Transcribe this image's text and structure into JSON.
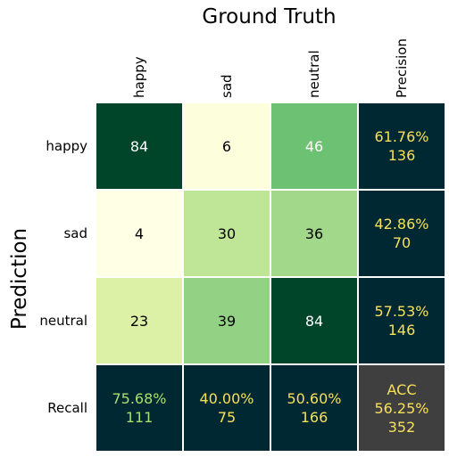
{
  "chart_data": {
    "type": "heatmap",
    "title": "Ground Truth",
    "ylabel": "Prediction",
    "columns": [
      "happy",
      "sad",
      "neutral"
    ],
    "rows": [
      "happy",
      "sad",
      "neutral"
    ],
    "matrix": [
      [
        84,
        6,
        46
      ],
      [
        4,
        30,
        36
      ],
      [
        23,
        39,
        84
      ]
    ],
    "precision_label": "Precision",
    "precision": [
      {
        "pct": "61.76%",
        "total": "136"
      },
      {
        "pct": "42.86%",
        "total": "70"
      },
      {
        "pct": "57.53%",
        "total": "146"
      }
    ],
    "recall_label": "Recall",
    "recall": [
      {
        "pct": "75.68%",
        "total": "111"
      },
      {
        "pct": "40.00%",
        "total": "75"
      },
      {
        "pct": "50.60%",
        "total": "166"
      }
    ],
    "accuracy": {
      "label": "ACC",
      "pct": "56.25%",
      "total": "352"
    },
    "colormap": "YlGn",
    "colors": {
      "summary_bg": "#002833",
      "accuracy_bg": "#3f3f3f",
      "summary_text": "#f7e05a",
      "recall_text_first": "#a8e06a"
    }
  }
}
